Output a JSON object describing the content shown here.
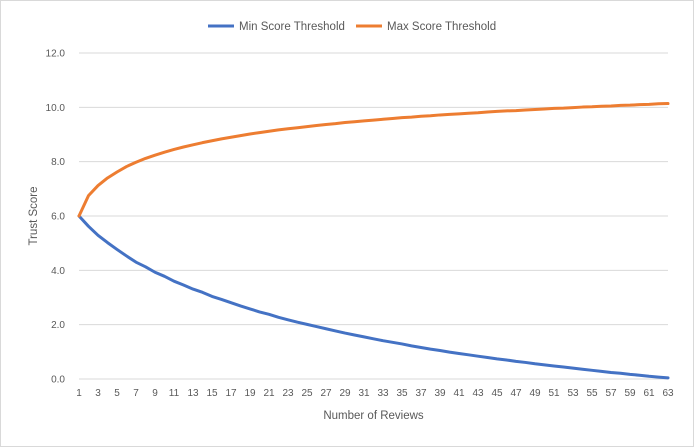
{
  "chart_data": {
    "type": "line",
    "title": "",
    "xlabel": "Number of Reviews",
    "ylabel": "Trust Score",
    "ylim": [
      0,
      12
    ],
    "yticks": [
      "0.0",
      "2.0",
      "4.0",
      "6.0",
      "8.0",
      "10.0",
      "12.0"
    ],
    "xticks": [
      "1",
      "3",
      "5",
      "7",
      "9",
      "11",
      "13",
      "15",
      "17",
      "19",
      "21",
      "23",
      "25",
      "27",
      "29",
      "31",
      "33",
      "35",
      "37",
      "39",
      "41",
      "43",
      "45",
      "47",
      "49",
      "51",
      "53",
      "55",
      "57",
      "59",
      "61",
      "63"
    ],
    "x": [
      1,
      2,
      3,
      4,
      5,
      6,
      7,
      8,
      9,
      10,
      11,
      12,
      13,
      14,
      15,
      16,
      17,
      18,
      19,
      20,
      21,
      22,
      23,
      24,
      25,
      26,
      27,
      28,
      29,
      30,
      31,
      32,
      33,
      34,
      35,
      36,
      37,
      38,
      39,
      40,
      41,
      42,
      43,
      44,
      45,
      46,
      47,
      48,
      49,
      50,
      51,
      52,
      53,
      54,
      55,
      56,
      57,
      58,
      59,
      60,
      61,
      62,
      63
    ],
    "grid": "horizontal",
    "legend_position": "top",
    "series": [
      {
        "name": "Min Score Threshold",
        "color": "#4472C4",
        "values": [
          6.0,
          5.62,
          5.29,
          5.02,
          4.77,
          4.53,
          4.3,
          4.13,
          3.93,
          3.78,
          3.6,
          3.46,
          3.31,
          3.19,
          3.04,
          2.93,
          2.81,
          2.69,
          2.58,
          2.47,
          2.38,
          2.27,
          2.18,
          2.09,
          2.01,
          1.93,
          1.85,
          1.77,
          1.69,
          1.62,
          1.55,
          1.48,
          1.41,
          1.35,
          1.29,
          1.22,
          1.16,
          1.1,
          1.05,
          0.99,
          0.94,
          0.89,
          0.84,
          0.79,
          0.74,
          0.7,
          0.65,
          0.61,
          0.56,
          0.52,
          0.48,
          0.44,
          0.4,
          0.36,
          0.32,
          0.28,
          0.24,
          0.21,
          0.17,
          0.14,
          0.1,
          0.07,
          0.04
        ]
      },
      {
        "name": "Max Score Threshold",
        "color": "#ED7D31",
        "values": [
          6.0,
          6.75,
          7.12,
          7.4,
          7.62,
          7.82,
          7.98,
          8.12,
          8.24,
          8.35,
          8.45,
          8.54,
          8.62,
          8.7,
          8.77,
          8.84,
          8.9,
          8.96,
          9.02,
          9.07,
          9.12,
          9.17,
          9.21,
          9.25,
          9.29,
          9.33,
          9.37,
          9.4,
          9.44,
          9.47,
          9.5,
          9.53,
          9.56,
          9.59,
          9.62,
          9.64,
          9.67,
          9.69,
          9.72,
          9.74,
          9.76,
          9.78,
          9.8,
          9.83,
          9.85,
          9.87,
          9.88,
          9.9,
          9.92,
          9.94,
          9.96,
          9.97,
          9.99,
          10.01,
          10.02,
          10.04,
          10.05,
          10.07,
          10.08,
          10.1,
          10.11,
          10.13,
          10.14
        ]
      }
    ]
  }
}
